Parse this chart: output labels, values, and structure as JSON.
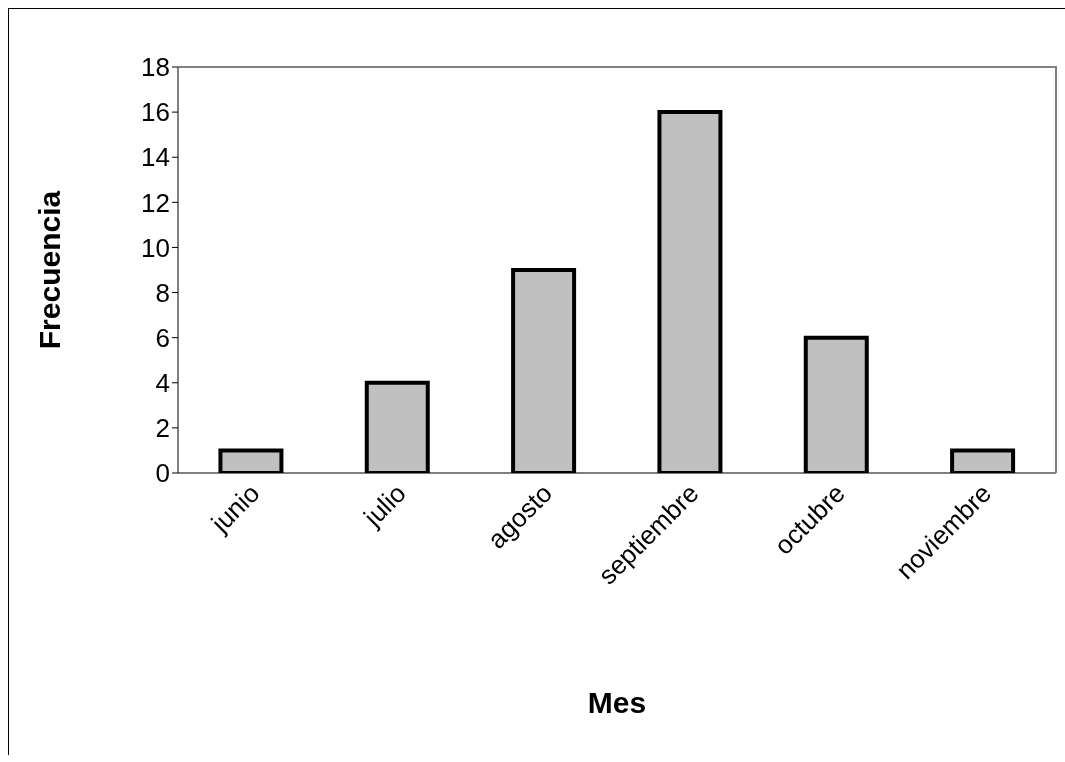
{
  "chart_data": {
    "type": "bar",
    "xlabel": "Mes",
    "ylabel": "Frecuencia",
    "categories": [
      "junio",
      "julio",
      "agosto",
      "septiembre",
      "octubre",
      "noviembre"
    ],
    "values": [
      1,
      4,
      9,
      16,
      6,
      1
    ],
    "color": "#c0c0c0",
    "ylim": [
      0,
      18
    ],
    "yticks": [
      0,
      2,
      4,
      6,
      8,
      10,
      12,
      14,
      16,
      18
    ],
    "grid": false
  }
}
